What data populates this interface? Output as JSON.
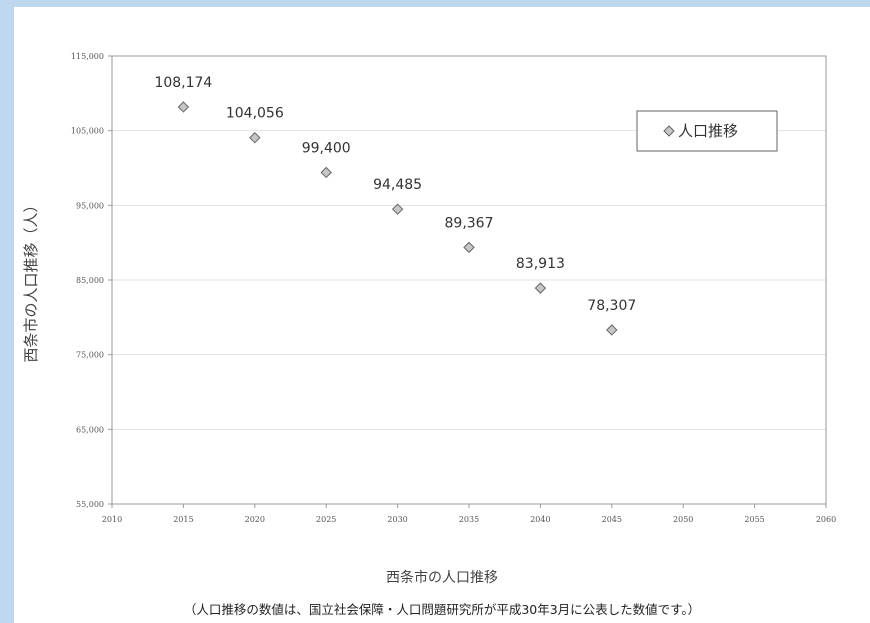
{
  "chart_data": {
    "type": "scatter",
    "x": [
      2015,
      2020,
      2025,
      2030,
      2035,
      2040,
      2045
    ],
    "y": [
      108174,
      104056,
      99400,
      94485,
      89367,
      83913,
      78307
    ],
    "data_labels": [
      "108,174",
      "104,056",
      "99,400",
      "94,485",
      "89,367",
      "83,913",
      "78,307"
    ],
    "xlim": [
      2010,
      2060
    ],
    "ylim": [
      55000,
      115000
    ],
    "x_ticks": [
      2010,
      2015,
      2020,
      2025,
      2030,
      2035,
      2040,
      2045,
      2050,
      2055,
      2060
    ],
    "y_ticks": [
      55000,
      65000,
      75000,
      85000,
      95000,
      105000,
      115000
    ],
    "x_tick_labels": [
      "2010",
      "2015",
      "2020",
      "2025",
      "2030",
      "2035",
      "2040",
      "2045",
      "2050",
      "2055",
      "2060"
    ],
    "y_tick_labels": [
      "55,000",
      "65,000",
      "75,000",
      "85,000",
      "95,000",
      "105,000",
      "115,000"
    ],
    "ylabel": "西条市の人口推移（人）",
    "xlabel": "",
    "series": [
      {
        "name": "人口推移",
        "marker": "diamond",
        "color": "#c6c6c6"
      }
    ],
    "legend_position": "top-right",
    "grid": "horizontal"
  },
  "caption": "西条市の人口推移",
  "note": "（人口推移の数値は、国立社会保障・人口問題研究所が平成30年3月に公表した数値です。）"
}
